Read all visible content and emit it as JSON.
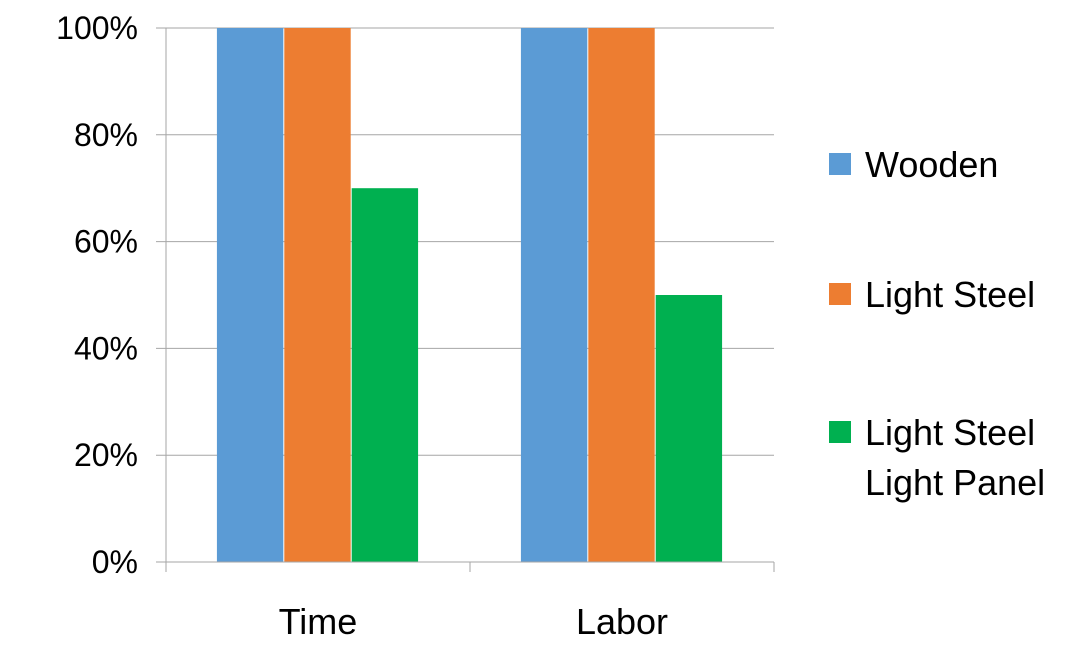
{
  "chart_data": {
    "type": "bar",
    "categories": [
      "Time",
      "Labor"
    ],
    "series": [
      {
        "name": "Wooden",
        "values": [
          100,
          100
        ],
        "color": "#5b9bd5"
      },
      {
        "name": "Light Steel",
        "values": [
          100,
          100
        ],
        "color": "#ed7d31"
      },
      {
        "name": "Light Steel Light Panel",
        "name_lines": [
          "Light Steel",
          "Light Panel"
        ],
        "values": [
          70,
          50
        ],
        "color": "#00b050"
      }
    ],
    "y_ticks": [
      "0%",
      "20%",
      "40%",
      "60%",
      "80%",
      "100%"
    ],
    "ylim": [
      0,
      100
    ],
    "grid": true,
    "legend_position": "right"
  }
}
